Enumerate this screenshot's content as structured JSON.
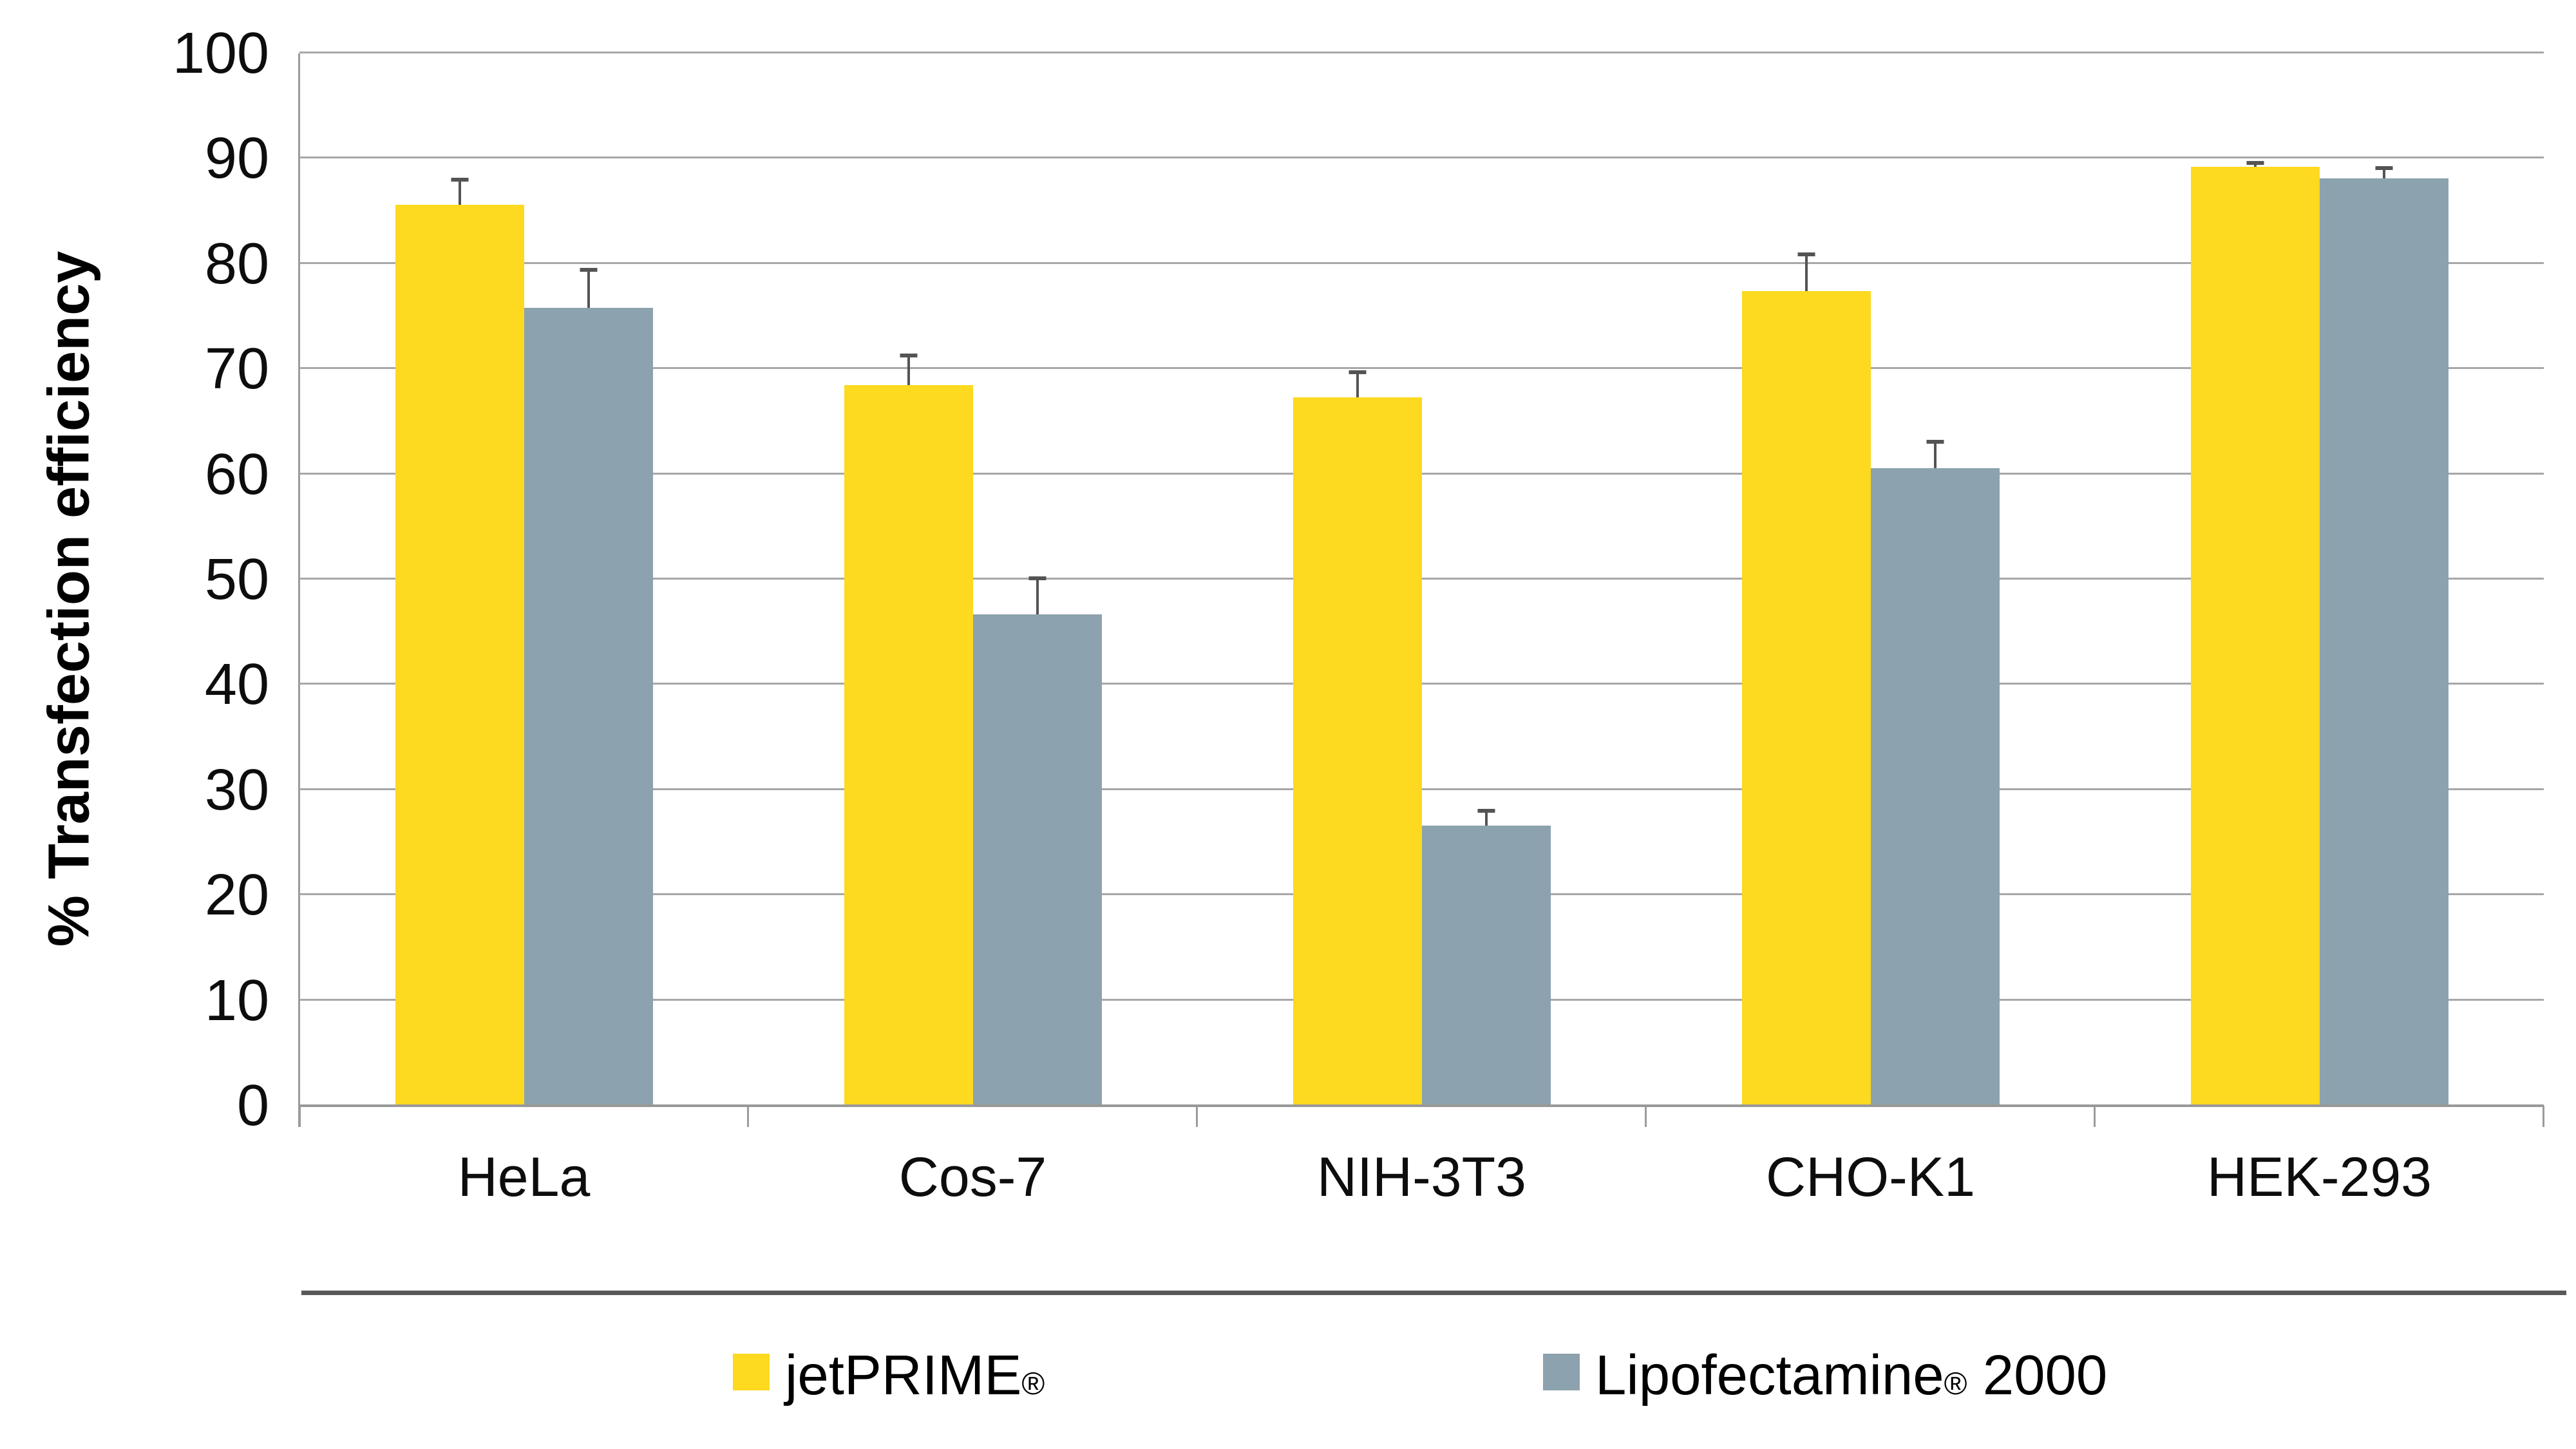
{
  "chart_data": {
    "type": "bar",
    "ylabel": "% Transfection efficiency",
    "xlabel": "",
    "ylim": [
      0,
      100
    ],
    "yticks": [
      0,
      10,
      20,
      30,
      40,
      50,
      60,
      70,
      80,
      90,
      100
    ],
    "grid": true,
    "legend_position": "bottom",
    "categories": [
      "HeLa",
      "Cos-7",
      "NIH-3T3",
      "CHO-K1",
      "HEK-293"
    ],
    "series": [
      {
        "name": "jetPRIME®",
        "color": "#FDD920",
        "values": [
          85.6,
          68.5,
          67.3,
          77.4,
          89.2
        ],
        "errors": [
          2.6,
          3.0,
          2.6,
          3.7,
          0.6
        ]
      },
      {
        "name": "Lipofectamine® 2000",
        "color": "#8CA2AE",
        "values": [
          75.8,
          46.7,
          26.6,
          60.6,
          88.1
        ],
        "errors": [
          3.8,
          3.6,
          1.6,
          2.7,
          1.2
        ]
      }
    ],
    "colors": {
      "gridline": "#A7A7A7",
      "axis": "#999999",
      "error_bar": "#545454",
      "legend_divider": "#595959",
      "text": "#0D0D0D"
    }
  }
}
